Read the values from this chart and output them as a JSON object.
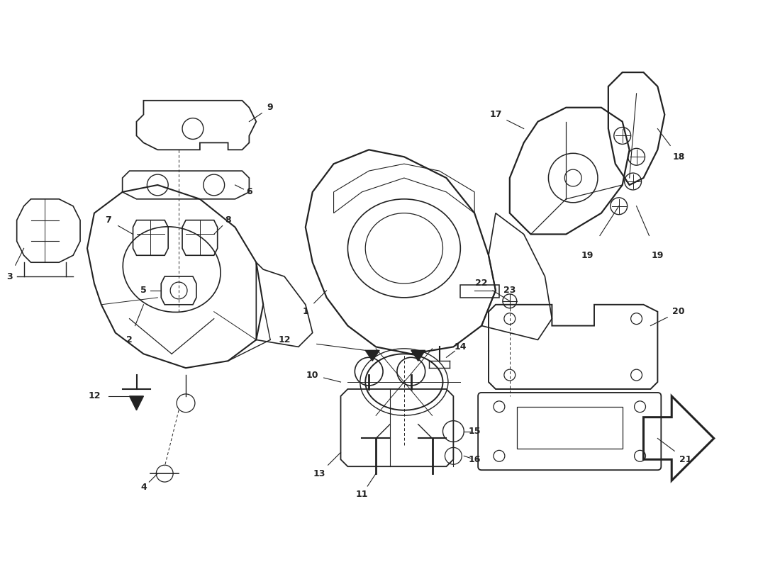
{
  "bg_color": "#ffffff",
  "line_color": "#222222",
  "label_color": "#222222",
  "figsize": [
    11.0,
    8.0
  ],
  "dpi": 100
}
